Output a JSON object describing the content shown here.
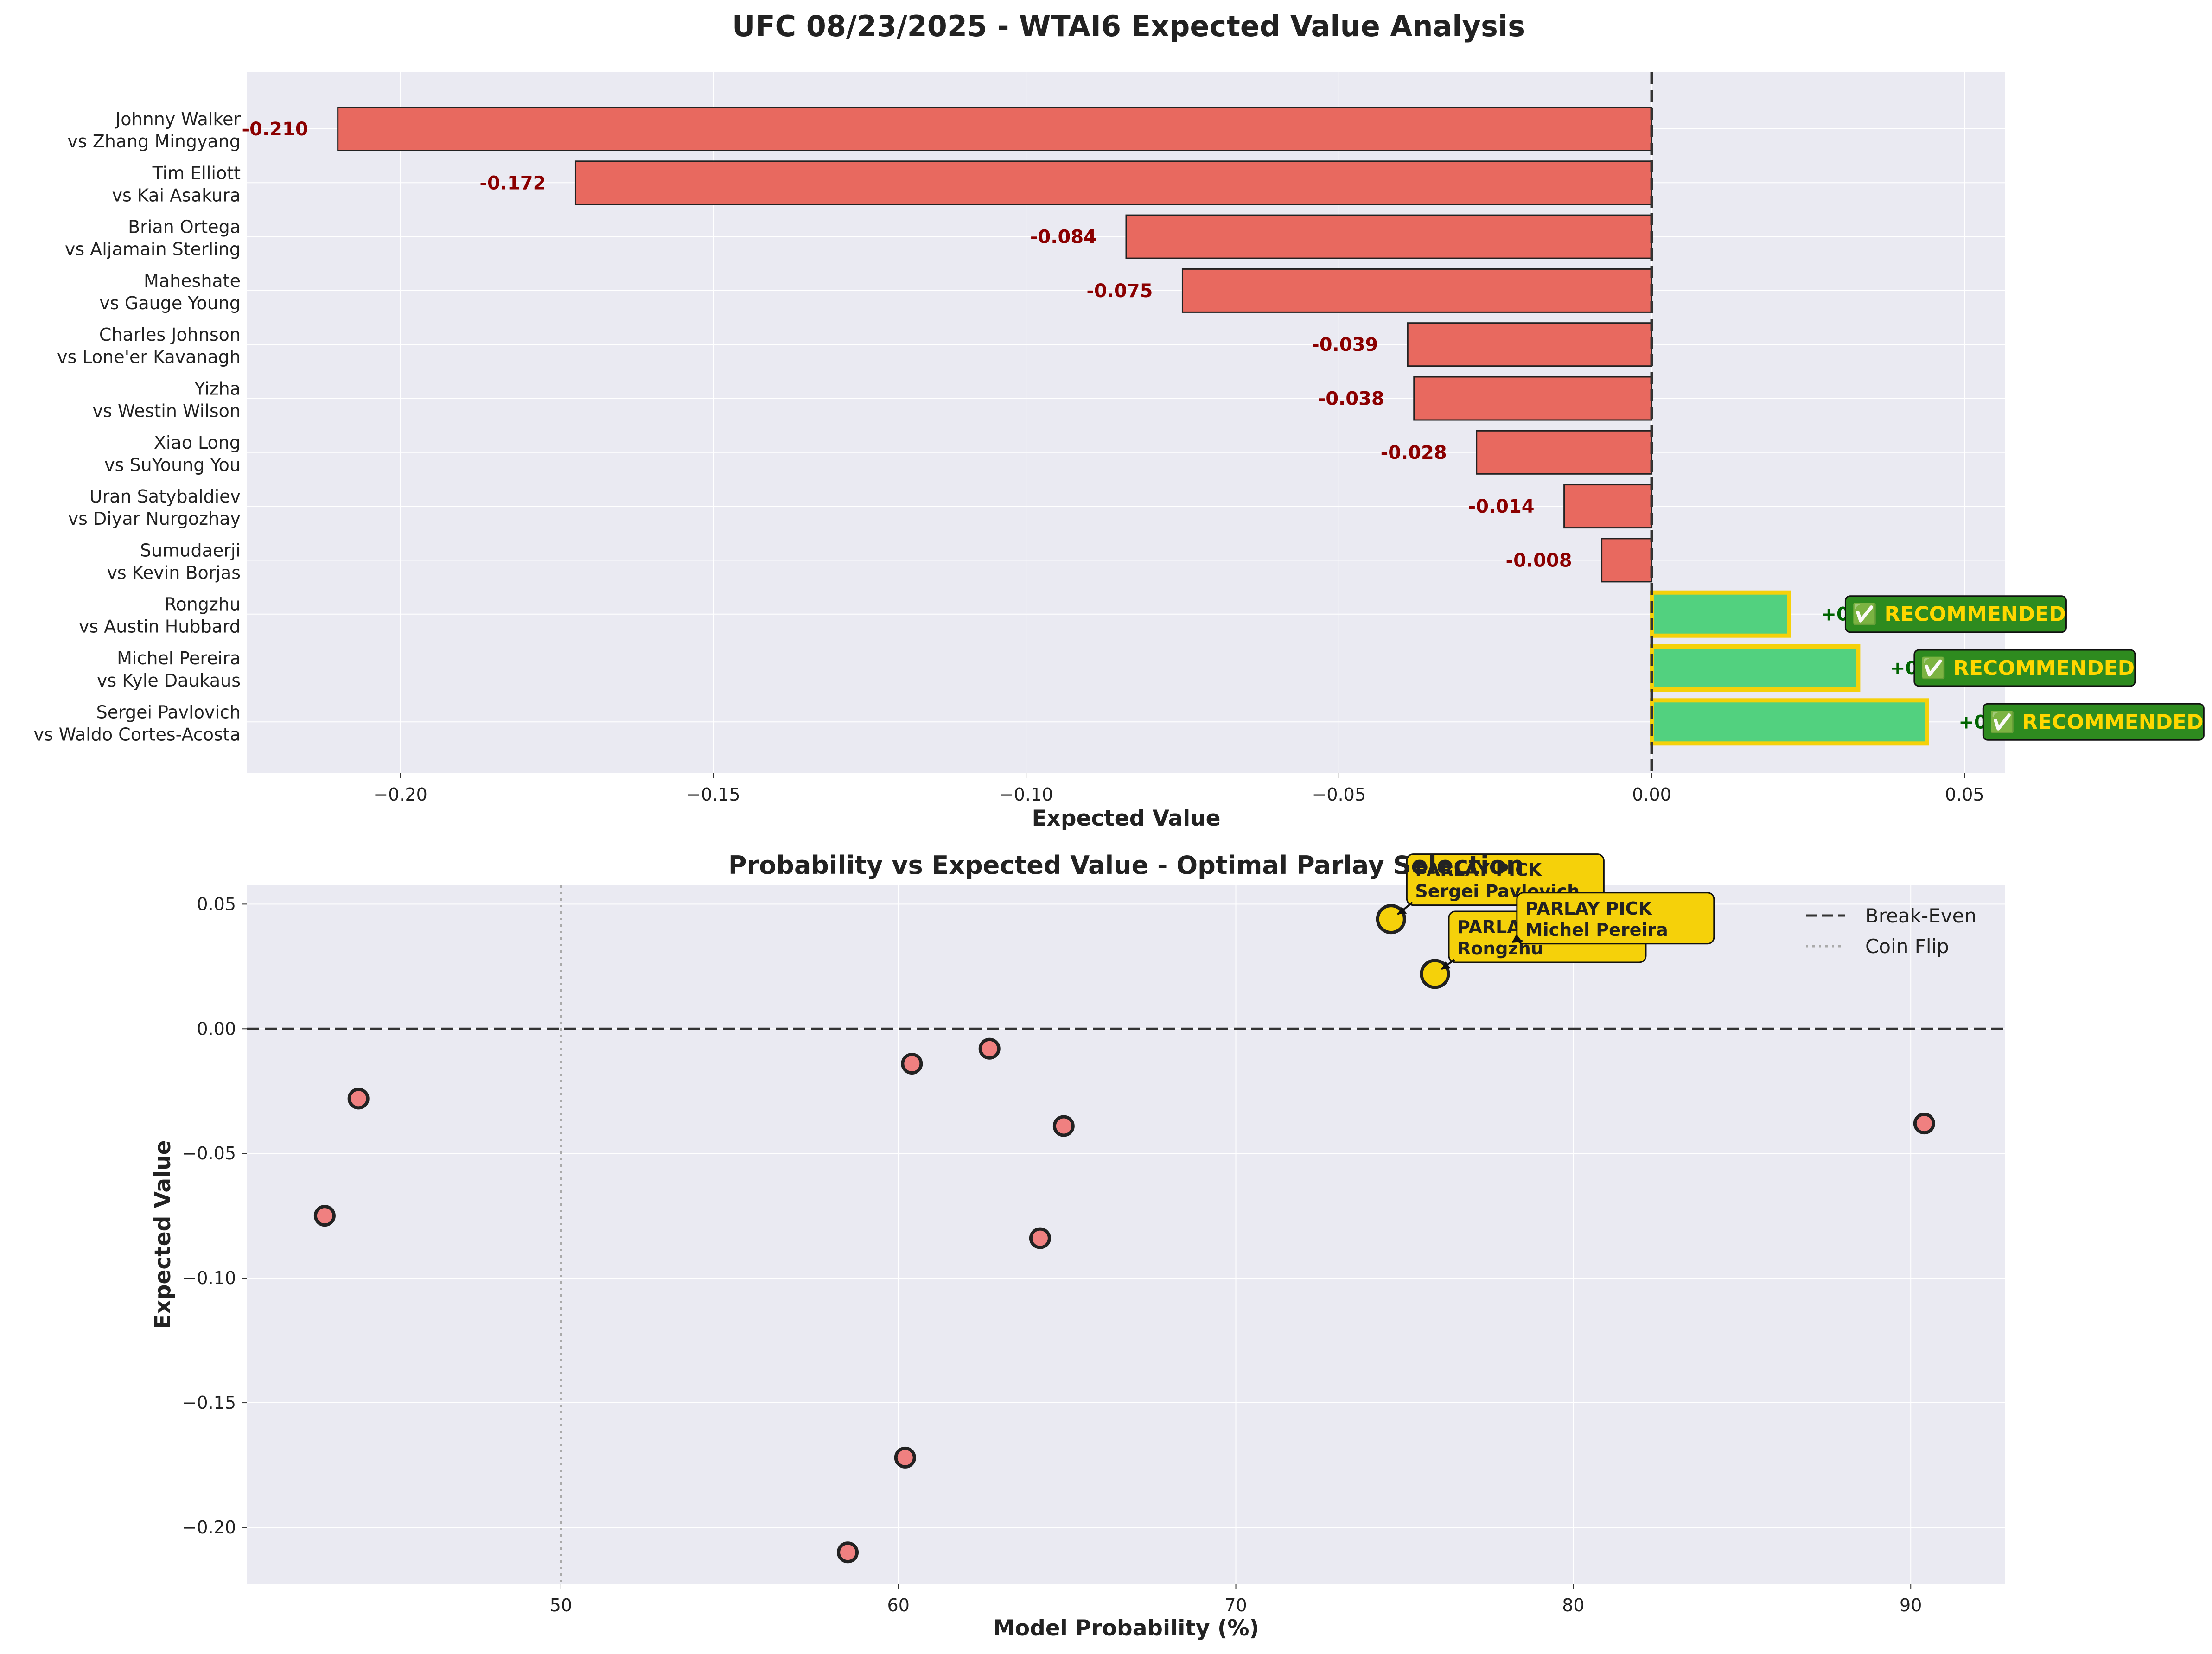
{
  "title": "UFC 08/23/2025 - WTAI6 Expected Value Analysis",
  "colors": {
    "negative_bar": "#e8695f",
    "positive_bar": "#52d17f",
    "highlight_edge": "#f5d10a",
    "recommend_box": "#2e8b1f",
    "recommend_text": "#ffd700",
    "negative_label": "#8b0000",
    "positive_label": "#006400",
    "scatter_negative": "#f08080",
    "scatter_positive": "#f5d10a",
    "axes_bg": "#eaeaf2"
  },
  "chart_data": [
    {
      "type": "bar",
      "orientation": "horizontal",
      "xlabel": "Expected Value",
      "ylabel": "",
      "xlim": [
        -0.2245,
        0.0565
      ],
      "xticks": [
        "-0.20",
        "-0.15",
        "-0.10",
        "-0.05",
        "0.00",
        "0.05"
      ],
      "xtick_values": [
        -0.2,
        -0.15,
        -0.1,
        -0.05,
        0.0,
        0.05
      ],
      "grid": true,
      "reference_line": 0,
      "categories": [
        [
          "Johnny Walker",
          "vs Zhang Mingyang"
        ],
        [
          "Tim Elliott",
          "vs Kai Asakura"
        ],
        [
          "Brian Ortega",
          "vs Aljamain Sterling"
        ],
        [
          "Maheshate",
          "vs Gauge Young"
        ],
        [
          "Charles Johnson",
          "vs Lone'er Kavanagh"
        ],
        [
          "Yizha",
          "vs Westin Wilson"
        ],
        [
          "Xiao Long",
          "vs SuYoung You"
        ],
        [
          "Uran Satybaldiev",
          "vs Diyar Nurgozhay"
        ],
        [
          "Sumudaerji",
          "vs Kevin Borjas"
        ],
        [
          "Rongzhu",
          "vs Austin Hubbard"
        ],
        [
          "Michel Pereira",
          "vs Kyle Daukaus"
        ],
        [
          "Sergei Pavlovich",
          "vs Waldo Cortes-Acosta"
        ]
      ],
      "values": [
        -0.21,
        -0.172,
        -0.084,
        -0.075,
        -0.039,
        -0.038,
        -0.028,
        -0.014,
        -0.008,
        0.022,
        0.033,
        0.044
      ],
      "value_labels": [
        "-0.210",
        "-0.172",
        "-0.084",
        "-0.075",
        "-0.039",
        "-0.038",
        "-0.028",
        "-0.014",
        "-0.008",
        "+0.022",
        "+0.033",
        "+0.044"
      ],
      "recommended": [
        false,
        false,
        false,
        false,
        false,
        false,
        false,
        false,
        false,
        true,
        true,
        true
      ],
      "recommend_label": "✅ RECOMMENDED"
    },
    {
      "type": "scatter",
      "title": "Probability vs Expected Value - Optimal Parlay Selection",
      "xlabel": "Model Probability (%)",
      "ylabel": "Expected Value",
      "xlim": [
        40.7,
        92.8
      ],
      "ylim": [
        -0.2225,
        0.0575
      ],
      "xticks": [
        "50",
        "60",
        "70",
        "80",
        "90"
      ],
      "xtick_values": [
        50,
        60,
        70,
        80,
        90
      ],
      "yticks": [
        "0.05",
        "0.00",
        "−0.05",
        "−0.10",
        "−0.15",
        "−0.20"
      ],
      "ytick_values": [
        0.05,
        0.0,
        -0.05,
        -0.1,
        -0.15,
        -0.2
      ],
      "grid": true,
      "points": [
        {
          "x": 58.5,
          "y": -0.21,
          "recommended": false
        },
        {
          "x": 60.2,
          "y": -0.172,
          "recommended": false
        },
        {
          "x": 64.2,
          "y": -0.084,
          "recommended": false
        },
        {
          "x": 43.0,
          "y": -0.075,
          "recommended": false
        },
        {
          "x": 64.9,
          "y": -0.039,
          "recommended": false
        },
        {
          "x": 90.4,
          "y": -0.038,
          "recommended": false
        },
        {
          "x": 44.0,
          "y": -0.028,
          "recommended": false
        },
        {
          "x": 60.4,
          "y": -0.014,
          "recommended": false
        },
        {
          "x": 62.7,
          "y": -0.008,
          "recommended": false
        },
        {
          "x": 75.9,
          "y": 0.022,
          "recommended": true
        },
        {
          "x": 78.0,
          "y": 0.033,
          "recommended": true
        },
        {
          "x": 74.6,
          "y": 0.044,
          "recommended": true
        }
      ],
      "annotations": [
        {
          "title": "PARLAY PICK",
          "name": "Rongzhu",
          "x": 75.9,
          "y": 0.022
        },
        {
          "title": "PARLAY PICK",
          "name": "Sergei Pavlovich",
          "x": 74.6,
          "y": 0.044
        },
        {
          "title": "PARLAY PICK",
          "name": "Michel Pereira",
          "x": 78.0,
          "y": 0.033
        }
      ],
      "legend": {
        "position": "top-right",
        "entries": [
          {
            "label": "Break-Even",
            "style": "dashed"
          },
          {
            "label": "Coin Flip",
            "style": "dotted"
          }
        ]
      },
      "reference_lines": {
        "horizontal": 0,
        "vertical": 50
      }
    }
  ]
}
